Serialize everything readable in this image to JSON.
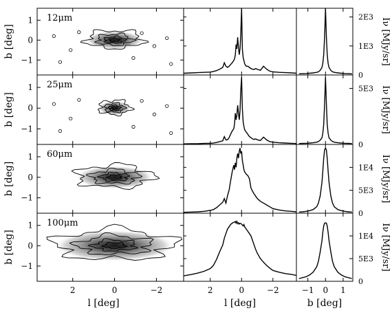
{
  "chart_data": {
    "type": "figure-grid",
    "rows": [
      {
        "band_label": "12μm",
        "image_panel": {
          "xlim": [
            3.7,
            -3.3
          ],
          "ylim": [
            -1.75,
            1.6
          ],
          "contours": 4
        },
        "l_profile": {
          "ylim": [
            0,
            2300
          ],
          "yticks": [
            "0",
            "1E3",
            "2E3"
          ]
        },
        "b_profile": {
          "ylim": [
            0,
            2300
          ]
        }
      },
      {
        "band_label": "25μm",
        "image_panel": {
          "xlim": [
            3.7,
            -3.3
          ],
          "ylim": [
            -1.75,
            1.6
          ],
          "contours": 4
        },
        "l_profile": {
          "ylim": [
            0,
            6200
          ],
          "yticks": [
            "0",
            "5E3"
          ]
        },
        "b_profile": {
          "ylim": [
            0,
            6200
          ]
        }
      },
      {
        "band_label": "60μm",
        "image_panel": {
          "xlim": [
            3.7,
            -3.3
          ],
          "ylim": [
            -1.75,
            1.6
          ],
          "contours": 4
        },
        "l_profile": {
          "ylim": [
            0,
            15000
          ],
          "yticks": [
            "0",
            "5E3",
            "1E4"
          ]
        },
        "b_profile": {
          "ylim": [
            0,
            15000
          ]
        }
      },
      {
        "band_label": "100μm",
        "image_panel": {
          "xlim": [
            3.7,
            -3.3
          ],
          "ylim": [
            -1.75,
            1.6
          ],
          "contours": 4
        },
        "l_profile": {
          "ylim": [
            0,
            15000
          ],
          "yticks": [
            "0",
            "5E3",
            "1E4"
          ]
        },
        "b_profile": {
          "ylim": [
            0,
            15000
          ]
        }
      }
    ],
    "image_ytick_labels": [
      "1",
      "0",
      "−1"
    ],
    "image_xtick_labels": [
      "2",
      "0",
      "−2"
    ],
    "l_profile_xtick_labels": [
      "2",
      "0",
      "−2"
    ],
    "b_profile_xtick_labels": [
      "−1",
      "0",
      "1"
    ],
    "left_ylabel": "b [deg]",
    "right_ylabel": "Iν [MJy/sr]",
    "xlabel_image": "l [deg]",
    "xlabel_l_profile": "l [deg]",
    "xlabel_b_profile": "b [deg]",
    "l_profile": {
      "l": [
        3.7,
        3.2,
        2.8,
        2.4,
        2.0,
        1.8,
        1.6,
        1.4,
        1.2,
        1.1,
        1.0,
        0.9,
        0.8,
        0.7,
        0.6,
        0.5,
        0.45,
        0.4,
        0.35,
        0.3,
        0.25,
        0.2,
        0.15,
        0.1,
        0.05,
        0.0,
        -0.05,
        -0.1,
        -0.15,
        -0.2,
        -0.3,
        -0.4,
        -0.5,
        -0.6,
        -0.7,
        -0.8,
        -0.9,
        -1.0,
        -1.2,
        -1.4,
        -1.6,
        -1.8,
        -2.0,
        -2.4,
        -2.8,
        -3.2,
        -3.5
      ],
      "series": [
        {
          "name": "12μm",
          "values": [
            60,
            70,
            80,
            90,
            100,
            120,
            150,
            200,
            260,
            420,
            300,
            260,
            300,
            360,
            420,
            500,
            550,
            700,
            1050,
            900,
            1300,
            950,
            700,
            900,
            1400,
            2300,
            900,
            600,
            500,
            380,
            300,
            300,
            260,
            220,
            200,
            190,
            220,
            200,
            160,
            300,
            200,
            130,
            110,
            90,
            80,
            70,
            60
          ]
        },
        {
          "name": "25μm",
          "values": [
            50,
            60,
            70,
            90,
            100,
            130,
            170,
            250,
            320,
            700,
            400,
            420,
            600,
            900,
            1200,
            1400,
            1800,
            2800,
            2200,
            2600,
            3500,
            2800,
            2200,
            3000,
            4800,
            6000,
            3200,
            2000,
            1600,
            1300,
            1100,
            900,
            700,
            600,
            500,
            450,
            500,
            420,
            350,
            650,
            400,
            250,
            200,
            150,
            120,
            100,
            80
          ]
        },
        {
          "name": "60μm",
          "values": [
            200,
            250,
            300,
            400,
            600,
            800,
            1200,
            1800,
            2400,
            3200,
            2200,
            3800,
            5000,
            7000,
            9000,
            10500,
            9500,
            11000,
            10000,
            12000,
            13000,
            12000,
            13500,
            14200,
            13000,
            13500,
            11500,
            10500,
            9500,
            9000,
            8500,
            8200,
            7500,
            5500,
            4800,
            4200,
            3700,
            3200,
            2600,
            2200,
            1800,
            1400,
            1000,
            700,
            500,
            400,
            300
          ]
        },
        {
          "name": "100μm",
          "values": [
            1200,
            1500,
            1800,
            2200,
            2800,
            3500,
            4800,
            6500,
            8000,
            9500,
            10500,
            11500,
            12000,
            12500,
            12800,
            13000,
            13000,
            13200,
            12800,
            13200,
            12700,
            12900,
            12600,
            12800,
            12700,
            12600,
            12400,
            12200,
            12500,
            12000,
            11500,
            11000,
            10500,
            10000,
            9000,
            8000,
            7000,
            6200,
            5000,
            4200,
            3500,
            2900,
            2400,
            2000,
            1700,
            1500,
            1300
          ]
        }
      ]
    },
    "b_profile": {
      "b": [
        -1.5,
        -1.3,
        -1.1,
        -0.9,
        -0.7,
        -0.5,
        -0.4,
        -0.3,
        -0.2,
        -0.15,
        -0.1,
        -0.05,
        0.0,
        0.05,
        0.1,
        0.15,
        0.2,
        0.3,
        0.4,
        0.5,
        0.7,
        0.9,
        1.1,
        1.3,
        1.5
      ],
      "series": [
        {
          "name": "12μm",
          "values": [
            40,
            45,
            50,
            60,
            70,
            90,
            110,
            160,
            260,
            400,
            700,
            1300,
            2300,
            1300,
            700,
            400,
            260,
            160,
            110,
            90,
            70,
            60,
            50,
            45,
            40
          ]
        },
        {
          "name": "25μm",
          "values": [
            80,
            90,
            100,
            120,
            150,
            200,
            260,
            380,
            600,
            1000,
            1800,
            3600,
            6000,
            3600,
            1800,
            1000,
            600,
            380,
            260,
            200,
            150,
            120,
            100,
            90,
            80
          ]
        },
        {
          "name": "60μm",
          "values": [
            250,
            300,
            400,
            550,
            800,
            1400,
            2200,
            3800,
            6800,
            9200,
            12000,
            13800,
            14200,
            13800,
            12000,
            9200,
            6800,
            3800,
            2200,
            1400,
            800,
            550,
            400,
            300,
            250
          ]
        },
        {
          "name": "100μm",
          "values": [
            600,
            800,
            1000,
            1400,
            2000,
            3200,
            4400,
            6500,
            9000,
            10800,
            12200,
            12800,
            12900,
            12800,
            12200,
            10800,
            9000,
            6500,
            4400,
            3200,
            2000,
            1400,
            1000,
            800,
            600
          ]
        }
      ]
    }
  }
}
